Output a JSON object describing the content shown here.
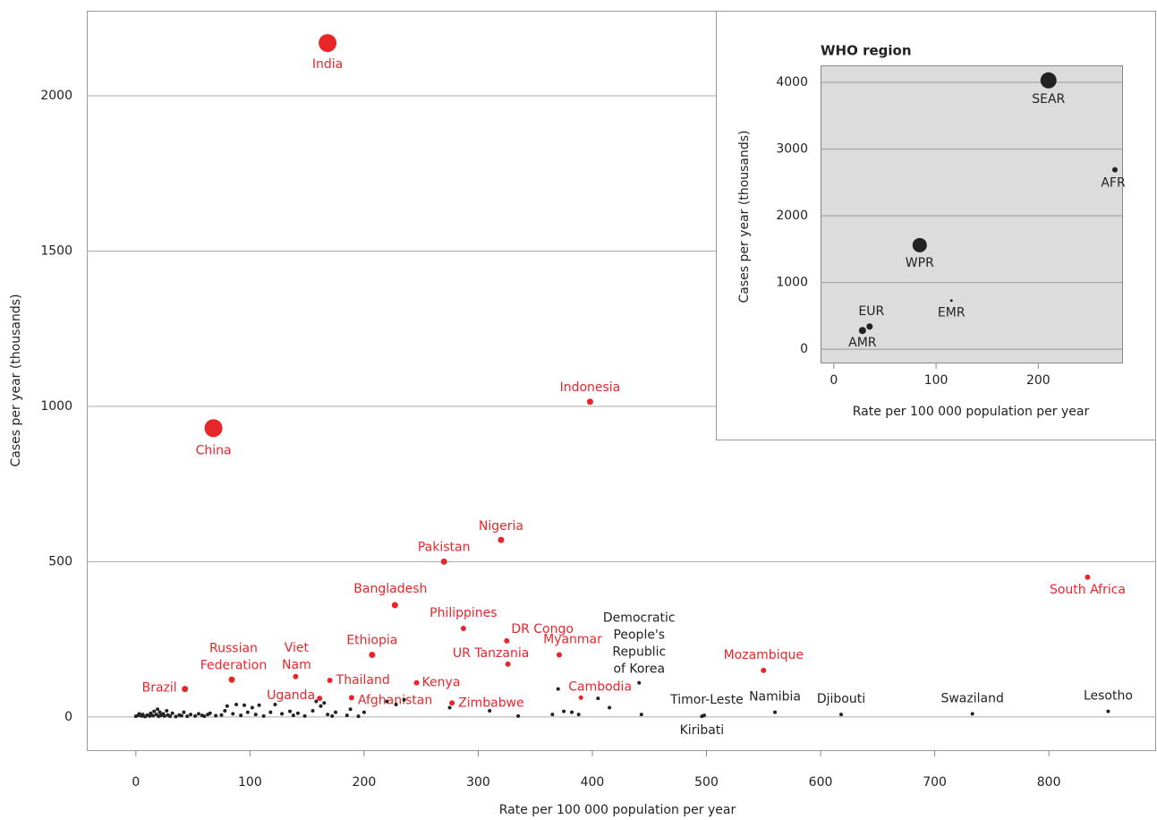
{
  "chart_data": [
    {
      "type": "scatter",
      "x_label": "Rate per 100 000 population per year",
      "y_label": "Cases per year (thousands)",
      "xlim": [
        -43,
        894
      ],
      "ylim": [
        -107,
        2274
      ],
      "xticks": [
        0,
        100,
        200,
        300,
        400,
        500,
        600,
        700,
        800
      ],
      "yticks": [
        0,
        500,
        1000,
        1500,
        2000
      ],
      "grid": true,
      "series": [
        {
          "color": "#e8262a",
          "x": [
            168,
            68,
            398,
            320,
            270,
            227,
            287,
            325,
            326,
            207,
            371,
            550,
            834,
            84,
            140,
            43,
            170,
            246,
            161,
            189,
            277,
            390
          ],
          "values": [
            2170,
            930,
            1015,
            570,
            500,
            360,
            285,
            245,
            170,
            200,
            200,
            150,
            450,
            120,
            130,
            90,
            118,
            110,
            60,
            62,
            45,
            62
          ],
          "sizes": [
            10,
            10,
            3.5,
            3.5,
            3.5,
            3.5,
            3,
            3,
            3,
            3.5,
            3,
            3,
            3,
            3.5,
            3,
            3.5,
            3,
            3,
            3,
            3,
            3,
            2.5
          ],
          "labels": [
            "India",
            "China",
            "Indonesia",
            "Nigeria",
            "Pakistan",
            "Bangladesh",
            "Philippines",
            "DR Congo",
            "UR Tanzania",
            "Ethiopia",
            "Myanmar",
            "Mozambique",
            "South Africa",
            [
              "Russian",
              "Federation"
            ],
            [
              "Viet",
              "Nam"
            ],
            "Brazil",
            "Thailand",
            "Kenya",
            "Uganda",
            "Afghanistan",
            "Zimbabwe",
            "Cambodia"
          ]
        },
        {
          "color": "#222222",
          "size": 2,
          "x": [
            441,
            498,
            496,
            560,
            618,
            733,
            852,
            0,
            2,
            3,
            5,
            6,
            8,
            10,
            12,
            13,
            15,
            16,
            18,
            19,
            20,
            21,
            22,
            24,
            25,
            27,
            28,
            30,
            32,
            35,
            38,
            40,
            42,
            45,
            48,
            52,
            55,
            58,
            60,
            63,
            65,
            70,
            75,
            78,
            80,
            85,
            88,
            92,
            95,
            98,
            102,
            105,
            108,
            112,
            118,
            122,
            128,
            135,
            138,
            142,
            148,
            155,
            158,
            162,
            165,
            168,
            172,
            175,
            185,
            188,
            195,
            200,
            220,
            228,
            235,
            275,
            310,
            335,
            365,
            370,
            375,
            382,
            388,
            405,
            415,
            443
          ],
          "values": [
            110,
            5,
            2,
            15,
            8,
            10,
            18,
            2,
            5,
            10,
            3,
            8,
            1,
            6,
            3,
            12,
            4,
            18,
            8,
            25,
            2,
            15,
            5,
            10,
            3,
            20,
            6,
            2,
            12,
            1,
            6,
            4,
            15,
            2,
            8,
            3,
            10,
            5,
            2,
            8,
            12,
            4,
            6,
            20,
            35,
            10,
            40,
            5,
            38,
            15,
            30,
            8,
            38,
            3,
            15,
            40,
            10,
            18,
            5,
            12,
            3,
            20,
            50,
            35,
            45,
            8,
            3,
            15,
            5,
            25,
            2,
            15,
            50,
            40,
            55,
            30,
            20,
            3,
            8,
            90,
            18,
            15,
            8,
            60,
            30,
            8
          ],
          "labels": [
            [
              "Democratic",
              "People's",
              "Republic",
              "of Korea"
            ],
            "Timor-Leste",
            "Kiribati",
            "Namibia",
            "Djibouti",
            "Swaziland",
            "Lesotho",
            null,
            null,
            null,
            null,
            null,
            null,
            null,
            null,
            null,
            null,
            null,
            null,
            null,
            null,
            null,
            null,
            null,
            null,
            null,
            null,
            null,
            null,
            null,
            null,
            null,
            null,
            null,
            null,
            null,
            null,
            null,
            null,
            null,
            null,
            null,
            null,
            null,
            null,
            null,
            null,
            null,
            null,
            null,
            null,
            null,
            null,
            null,
            null,
            null,
            null,
            null,
            null,
            null,
            null,
            null,
            null,
            null,
            null,
            null,
            null,
            null,
            null,
            null,
            null,
            null,
            null,
            null,
            null,
            null,
            null,
            null,
            null,
            null,
            null,
            null,
            null,
            null
          ]
        }
      ]
    },
    {
      "type": "scatter",
      "title": "WHO region",
      "x_label": "Rate per 100 000 population per year",
      "y_label": "Cases per year (thousands)",
      "xlim": [
        -13,
        282
      ],
      "ylim": [
        -200,
        4255
      ],
      "xticks": [
        0,
        100,
        200
      ],
      "yticks": [
        0,
        1000,
        2000,
        3000,
        4000
      ],
      "grid": true,
      "series": [
        {
          "color": "#222222",
          "x": [
            28,
            35,
            115,
            84,
            210,
            275
          ],
          "values": [
            280,
            340,
            730,
            1560,
            4030,
            2690
          ],
          "sizes": [
            4,
            3.5,
            1.5,
            8,
            9,
            3
          ],
          "labels": [
            "AMR",
            "EUR",
            "EMR",
            "WPR",
            "SEAR",
            "AFR"
          ]
        }
      ]
    }
  ]
}
